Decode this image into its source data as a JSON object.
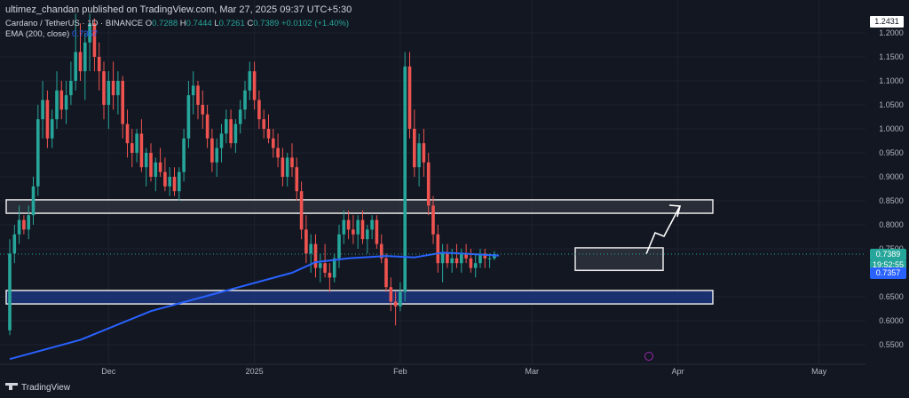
{
  "header": {
    "publisher": "ultimez_chandan published on TradingView.com, Mar 27, 2025 09:37 UTC+5:30",
    "symbol": "Cardano / TetherUS · 1D · BINANCE",
    "ohlc": {
      "o_label": "O",
      "o": "0.7288",
      "h_label": "H",
      "h": "0.7444",
      "l_label": "L",
      "l": "0.7261",
      "c_label": "C",
      "c": "0.7389",
      "change": "+0.0102 (+1.40%)"
    },
    "ema_label": "EMA (200, close)",
    "ema_value": "0.7357"
  },
  "price_labels": {
    "top": "1.2431",
    "last": "0.7389",
    "countdown": "19:52:55",
    "ema": "0.7357"
  },
  "logo_text": "TradingView",
  "colors": {
    "background": "#131722",
    "up": "#26a69a",
    "down": "#ef5350",
    "ema": "#2962ff",
    "zone_fill": "#1e3a8a"
  },
  "chart_data": {
    "type": "candlestick",
    "yaxis": {
      "ticks": [
        1.2,
        1.15,
        1.1,
        1.05,
        1.0,
        0.95,
        0.9,
        0.85,
        0.8,
        0.75,
        0.65,
        0.6,
        0.55
      ],
      "range": [
        0.51,
        1.245
      ]
    },
    "xaxis": {
      "ticks": [
        {
          "label": "Dec",
          "date": "2024-12-01"
        },
        {
          "label": "2025",
          "date": "2025-01-01"
        },
        {
          "label": "Feb",
          "date": "2025-02-01"
        },
        {
          "label": "Mar",
          "date": "2025-03-01"
        },
        {
          "label": "Apr",
          "date": "2025-04-01"
        },
        {
          "label": "May",
          "date": "2025-05-01"
        }
      ]
    },
    "series_start": "2024-11-10",
    "candles": [
      [
        0.58,
        0.77,
        0.57,
        0.74
      ],
      [
        0.74,
        0.8,
        0.72,
        0.78
      ],
      [
        0.78,
        0.84,
        0.76,
        0.81
      ],
      [
        0.81,
        0.82,
        0.78,
        0.79
      ],
      [
        0.79,
        0.84,
        0.77,
        0.82
      ],
      [
        0.82,
        0.9,
        0.8,
        0.88
      ],
      [
        0.88,
        1.05,
        0.86,
        1.02
      ],
      [
        1.02,
        1.1,
        0.98,
        1.06
      ],
      [
        1.06,
        1.08,
        0.96,
        0.98
      ],
      [
        0.98,
        1.04,
        0.96,
        1.02
      ],
      [
        1.02,
        1.12,
        1.0,
        1.08
      ],
      [
        1.08,
        1.1,
        1.02,
        1.04
      ],
      [
        1.04,
        1.1,
        1.01,
        1.07
      ],
      [
        1.07,
        1.14,
        1.05,
        1.1
      ],
      [
        1.1,
        1.24,
        1.08,
        1.16
      ],
      [
        1.16,
        1.22,
        1.1,
        1.12
      ],
      [
        1.12,
        1.2,
        1.06,
        1.18
      ],
      [
        1.18,
        1.24,
        1.12,
        1.22
      ],
      [
        1.22,
        1.23,
        1.12,
        1.15
      ],
      [
        1.15,
        1.18,
        1.08,
        1.12
      ],
      [
        1.12,
        1.14,
        1.02,
        1.05
      ],
      [
        1.05,
        1.12,
        1.0,
        1.1
      ],
      [
        1.1,
        1.14,
        1.04,
        1.07
      ],
      [
        1.07,
        1.12,
        1.03,
        1.1
      ],
      [
        1.1,
        1.11,
        0.98,
        1.01
      ],
      [
        1.01,
        1.04,
        0.94,
        0.97
      ],
      [
        0.97,
        1.0,
        0.92,
        0.95
      ],
      [
        0.95,
        1.0,
        0.93,
        0.99
      ],
      [
        0.99,
        1.02,
        0.91,
        0.92
      ],
      [
        0.92,
        0.96,
        0.88,
        0.95
      ],
      [
        0.95,
        0.97,
        0.89,
        0.9
      ],
      [
        0.9,
        0.94,
        0.87,
        0.93
      ],
      [
        0.93,
        0.96,
        0.9,
        0.91
      ],
      [
        0.91,
        0.94,
        0.87,
        0.88
      ],
      [
        0.88,
        0.92,
        0.86,
        0.9
      ],
      [
        0.9,
        0.92,
        0.86,
        0.87
      ],
      [
        0.87,
        0.92,
        0.85,
        0.91
      ],
      [
        0.91,
        1.0,
        0.89,
        0.98
      ],
      [
        0.98,
        1.1,
        0.96,
        1.07
      ],
      [
        1.07,
        1.12,
        1.03,
        1.09
      ],
      [
        1.09,
        1.1,
        1.02,
        1.05
      ],
      [
        1.05,
        1.08,
        1.0,
        1.03
      ],
      [
        1.03,
        1.05,
        0.96,
        0.98
      ],
      [
        0.98,
        1.0,
        0.91,
        0.93
      ],
      [
        0.93,
        0.98,
        0.9,
        0.96
      ],
      [
        0.96,
        1.01,
        0.93,
        0.99
      ],
      [
        0.99,
        1.04,
        0.97,
        1.02
      ],
      [
        1.02,
        1.04,
        0.96,
        0.97
      ],
      [
        0.97,
        1.02,
        0.95,
        1.01
      ],
      [
        1.01,
        1.06,
        0.99,
        1.04
      ],
      [
        1.04,
        1.1,
        1.02,
        1.08
      ],
      [
        1.08,
        1.14,
        1.06,
        1.12
      ],
      [
        1.12,
        1.14,
        1.04,
        1.06
      ],
      [
        1.06,
        1.08,
        1.0,
        1.02
      ],
      [
        1.02,
        1.04,
        0.98,
        1.0
      ],
      [
        1.0,
        1.03,
        0.97,
        0.98
      ],
      [
        0.98,
        1.0,
        0.94,
        0.96
      ],
      [
        0.96,
        0.99,
        0.92,
        0.94
      ],
      [
        0.94,
        0.96,
        0.88,
        0.9
      ],
      [
        0.9,
        0.95,
        0.88,
        0.94
      ],
      [
        0.94,
        0.97,
        0.9,
        0.92
      ],
      [
        0.92,
        0.94,
        0.85,
        0.87
      ],
      [
        0.87,
        0.89,
        0.77,
        0.79
      ],
      [
        0.79,
        0.82,
        0.72,
        0.74
      ],
      [
        0.74,
        0.78,
        0.7,
        0.76
      ],
      [
        0.76,
        0.78,
        0.69,
        0.71
      ],
      [
        0.71,
        0.74,
        0.68,
        0.72
      ],
      [
        0.72,
        0.76,
        0.69,
        0.7
      ],
      [
        0.7,
        0.72,
        0.66,
        0.69
      ],
      [
        0.69,
        0.74,
        0.68,
        0.73
      ],
      [
        0.73,
        0.8,
        0.71,
        0.78
      ],
      [
        0.78,
        0.83,
        0.76,
        0.81
      ],
      [
        0.81,
        0.83,
        0.77,
        0.79
      ],
      [
        0.79,
        0.82,
        0.76,
        0.78
      ],
      [
        0.78,
        0.82,
        0.75,
        0.81
      ],
      [
        0.81,
        0.83,
        0.76,
        0.77
      ],
      [
        0.77,
        0.8,
        0.74,
        0.79
      ],
      [
        0.79,
        0.82,
        0.77,
        0.81
      ],
      [
        0.81,
        0.82,
        0.75,
        0.76
      ],
      [
        0.76,
        0.78,
        0.72,
        0.73
      ],
      [
        0.73,
        0.74,
        0.66,
        0.67
      ],
      [
        0.67,
        0.69,
        0.62,
        0.64
      ],
      [
        0.64,
        0.66,
        0.59,
        0.63
      ],
      [
        0.63,
        0.68,
        0.62,
        0.66
      ],
      [
        0.66,
        1.16,
        0.64,
        1.13
      ],
      [
        1.13,
        1.16,
        0.98,
        1.0
      ],
      [
        1.0,
        1.04,
        0.9,
        0.92
      ],
      [
        0.92,
        0.99,
        0.88,
        0.97
      ],
      [
        0.97,
        1.0,
        0.9,
        0.93
      ],
      [
        0.93,
        0.95,
        0.82,
        0.84
      ],
      [
        0.84,
        0.86,
        0.76,
        0.78
      ],
      [
        0.78,
        0.8,
        0.7,
        0.72
      ],
      [
        0.72,
        0.76,
        0.68,
        0.74
      ],
      [
        0.74,
        0.76,
        0.71,
        0.72
      ],
      [
        0.72,
        0.75,
        0.7,
        0.73
      ],
      [
        0.73,
        0.76,
        0.71,
        0.72
      ],
      [
        0.72,
        0.75,
        0.7,
        0.74
      ],
      [
        0.74,
        0.76,
        0.72,
        0.73
      ],
      [
        0.73,
        0.75,
        0.7,
        0.71
      ],
      [
        0.71,
        0.74,
        0.69,
        0.72
      ],
      [
        0.72,
        0.75,
        0.71,
        0.74
      ],
      [
        0.74,
        0.75,
        0.71,
        0.73
      ],
      [
        0.73,
        0.74,
        0.71,
        0.73
      ],
      [
        0.73,
        0.745,
        0.726,
        0.739
      ]
    ],
    "ema": [
      [
        0,
        0.52
      ],
      [
        15,
        0.56
      ],
      [
        30,
        0.62
      ],
      [
        45,
        0.66
      ],
      [
        60,
        0.7
      ],
      [
        65,
        0.722
      ],
      [
        72,
        0.73
      ],
      [
        80,
        0.735
      ],
      [
        86,
        0.732
      ],
      [
        92,
        0.742
      ],
      [
        100,
        0.738
      ],
      [
        104,
        0.7357
      ]
    ],
    "zones": [
      {
        "name": "resistance",
        "from": 0.824,
        "to": 0.852,
        "fill": "#3a3f4b"
      },
      {
        "name": "support",
        "from": 0.635,
        "to": 0.663,
        "fill": "#1e3a8a"
      },
      {
        "name": "consolidation",
        "from": 0.705,
        "to": 0.752,
        "fill": "#3a3f4b"
      }
    ]
  }
}
